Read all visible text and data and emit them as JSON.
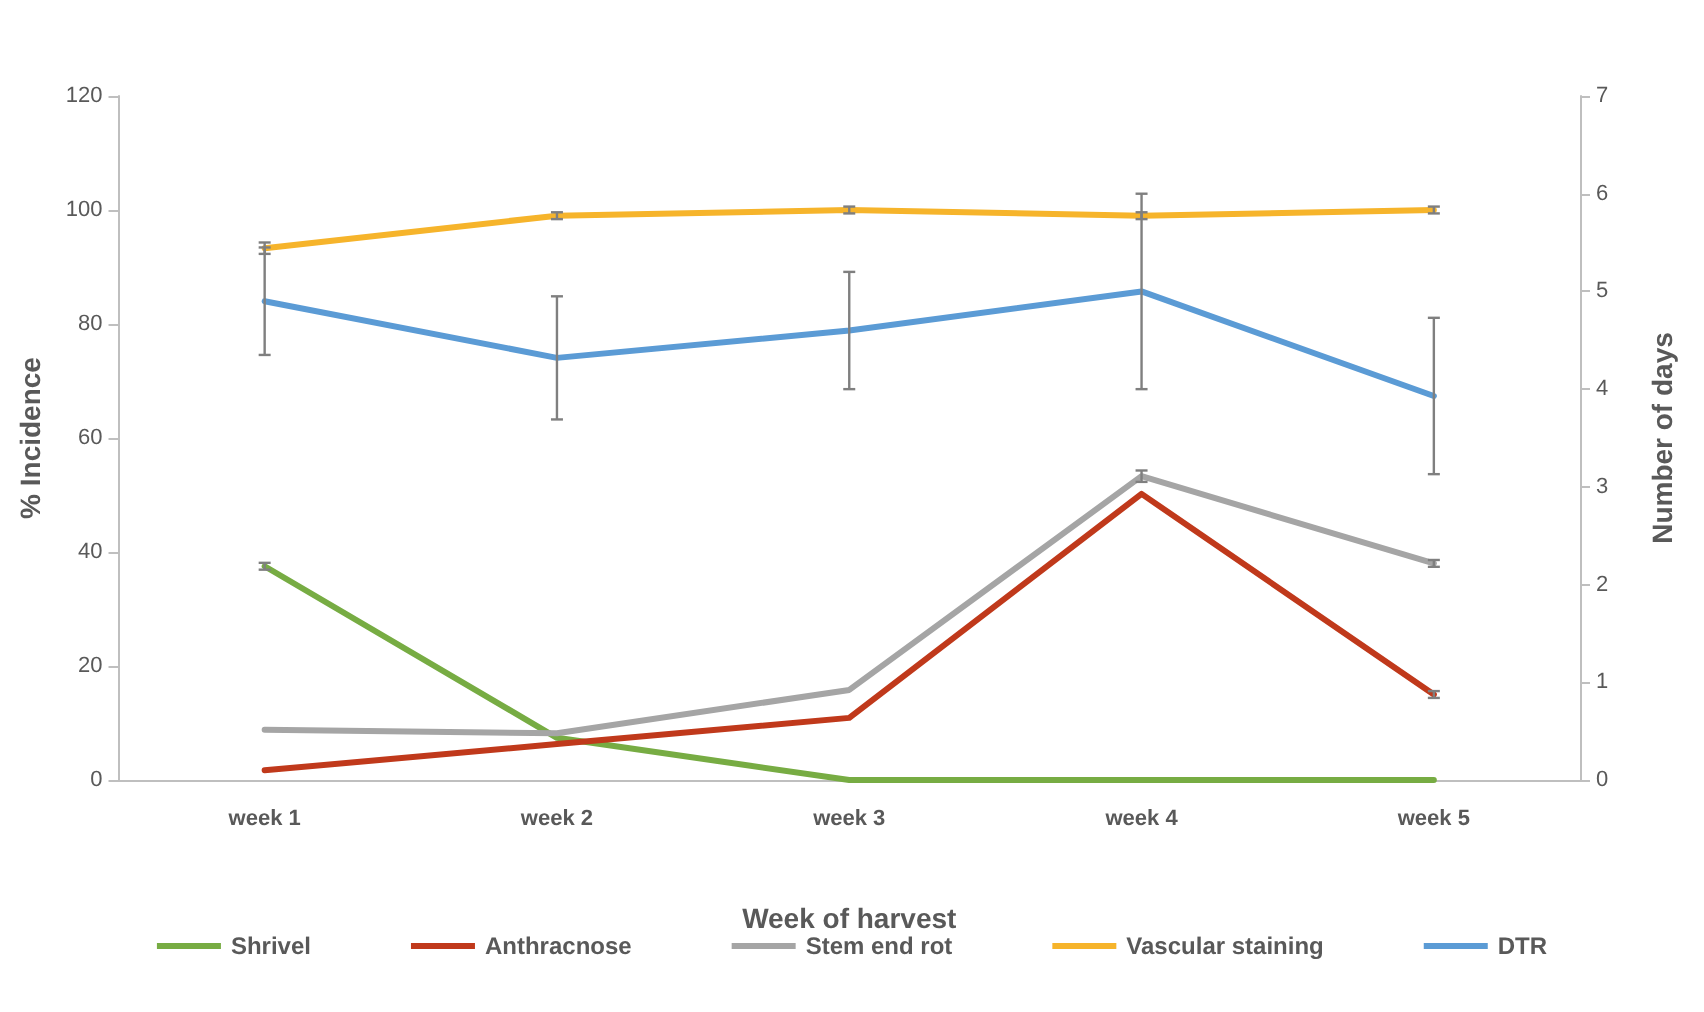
{
  "chart_data": {
    "type": "line",
    "xlabel": "Week of harvest",
    "ylabel": "% Incidence",
    "y2label": "Number of days",
    "categories": [
      "week 1",
      "week 2",
      "week 3",
      "week 4",
      "week 5"
    ],
    "series": [
      {
        "name": "Shrivel",
        "color": "#77ac43",
        "values": [
          37.5,
          7.4,
          0,
          0,
          0
        ],
        "errors": [
          0.6,
          null,
          null,
          null,
          null
        ]
      },
      {
        "name": "Anthracnose",
        "color": "#c0391b",
        "values": [
          1.7,
          6.3,
          10.9,
          50.2,
          15
        ],
        "errors": [
          null,
          null,
          null,
          null,
          0.6
        ]
      },
      {
        "name": "Stem end rot",
        "color": "#a5a5a5",
        "values": [
          8.8,
          8.2,
          15.8,
          53.3,
          38
        ],
        "errors": [
          null,
          null,
          null,
          1,
          0.6
        ]
      },
      {
        "name": "Vascular staining",
        "color": "#f6b42b",
        "values": [
          93.3,
          99,
          100,
          99,
          100
        ],
        "errors": [
          1,
          0.6,
          0.6,
          0.6,
          0.6
        ]
      },
      {
        "name": "DTR",
        "color": "#5b9bd5",
        "axis": "y2",
        "values": [
          4.9,
          4.32,
          4.6,
          5.0,
          3.93
        ],
        "errors": [
          0.55,
          0.63,
          0.6,
          1.0,
          0.8
        ]
      }
    ],
    "ylim": [
      0,
      120
    ],
    "yticks": [
      0,
      20,
      40,
      60,
      80,
      100,
      120
    ],
    "y2lim": [
      0,
      7
    ],
    "y2ticks": [
      0,
      1,
      2,
      3,
      4,
      5,
      6,
      7
    ],
    "grid": false,
    "legend": "bottom",
    "marker": "none",
    "line_style": "solid"
  }
}
